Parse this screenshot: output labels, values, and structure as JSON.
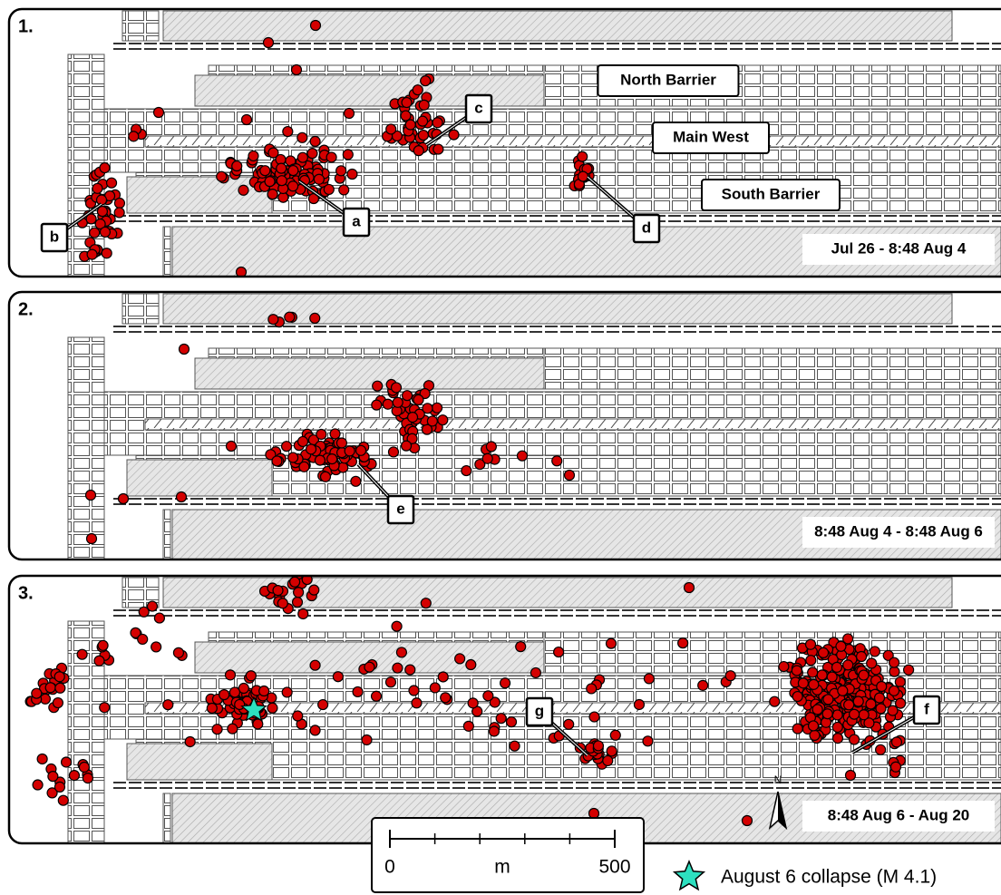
{
  "panels": [
    {
      "number": "1.",
      "period": "Jul 26 - 8:48 Aug 4",
      "areas": [
        "North Barrier",
        "Main West",
        "South Barrier"
      ],
      "callouts": [
        "a",
        "b",
        "c",
        "d"
      ]
    },
    {
      "number": "2.",
      "period": "8:48 Aug 4 - 8:48 Aug 6",
      "callouts": [
        "e"
      ]
    },
    {
      "number": "3.",
      "period": "8:48 Aug 6 - Aug 20",
      "callouts": [
        "f",
        "g"
      ]
    }
  ],
  "scale_bar": {
    "min": 0,
    "max": 500,
    "unit": "m"
  },
  "north_arrow": "N",
  "legend": "August 6 collapse (M 4.1)"
}
